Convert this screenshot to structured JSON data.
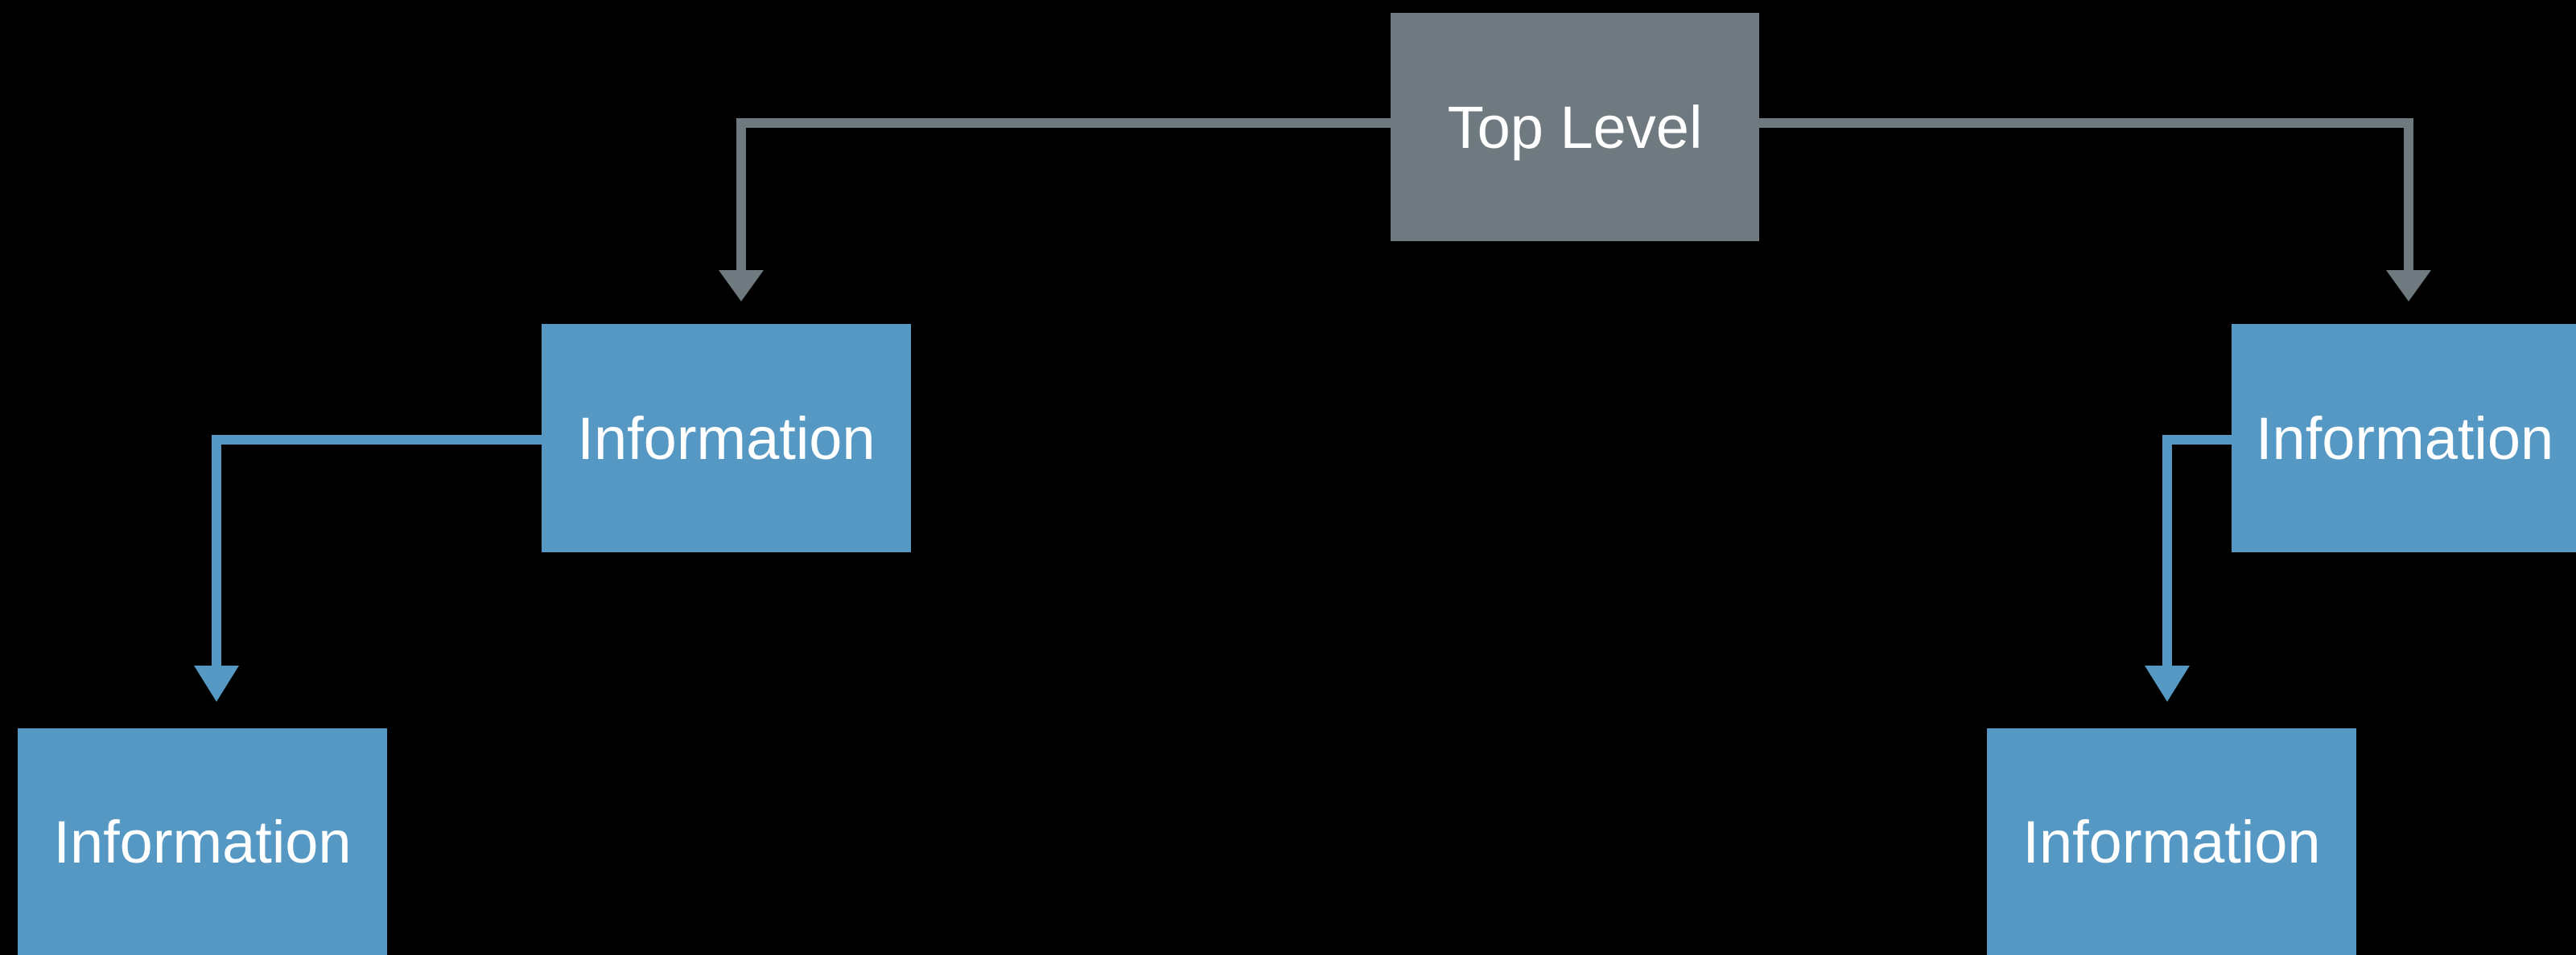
{
  "diagram": {
    "nodes": {
      "top": {
        "label": "Top Level"
      },
      "level1_left": {
        "label": "Information"
      },
      "level1_right": {
        "label": "Information"
      },
      "level2_left": {
        "label": "Information"
      },
      "level2_right": {
        "label": "Information"
      }
    },
    "edges": [
      {
        "from": "top",
        "to": "level1_left"
      },
      {
        "from": "top",
        "to": "level1_right"
      },
      {
        "from": "level1_left",
        "to": "level2_left"
      },
      {
        "from": "level1_right",
        "to": "level2_right"
      }
    ],
    "colors": {
      "background": "#000000",
      "top_node": "#6f7a80",
      "info_node": "#5698c4",
      "top_connector": "#6f7a80",
      "info_connector": "#5698c4",
      "text": "#ffffff"
    }
  }
}
